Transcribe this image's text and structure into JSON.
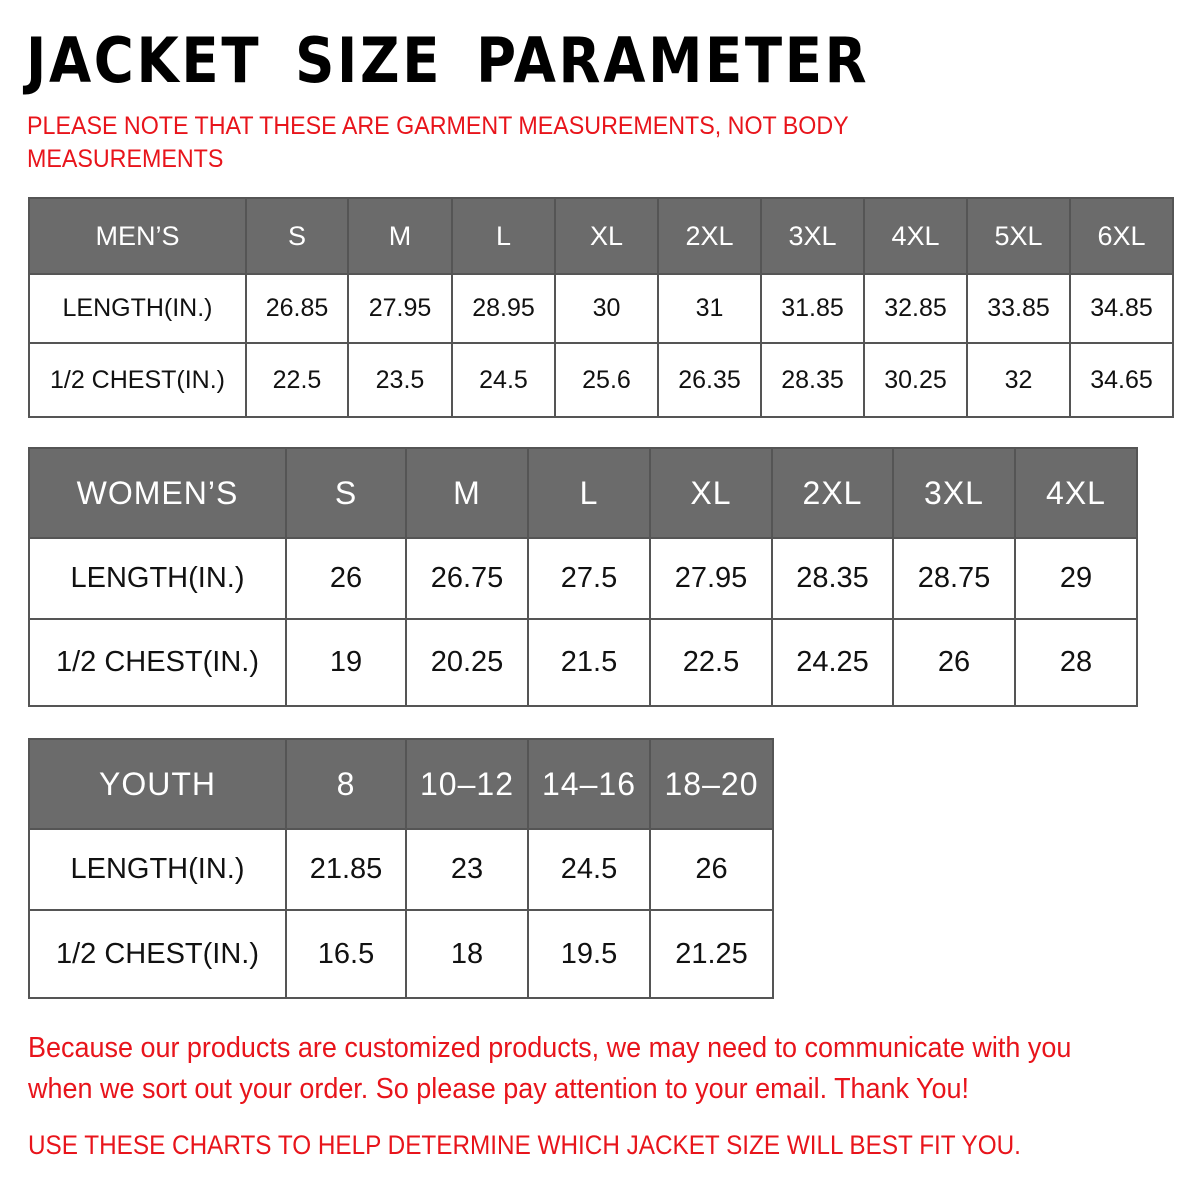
{
  "title": "JACKET SIZE PARAMETER",
  "subtitle": "PLEASE NOTE THAT THESE ARE GARMENT MEASUREMENTS, NOT BODY MEASUREMENTS",
  "colors": {
    "accent_red": "#e8141b",
    "header_gray": "#6b6b6b"
  },
  "tables": {
    "men": {
      "header": [
        "MEN’S",
        "S",
        "M",
        "L",
        "XL",
        "2XL",
        "3XL",
        "4XL",
        "5XL",
        "6XL"
      ],
      "rows": [
        [
          "LENGTH(IN.)",
          "26.85",
          "27.95",
          "28.95",
          "30",
          "31",
          "31.85",
          "32.85",
          "33.85",
          "34.85"
        ],
        [
          "1/2 CHEST(IN.)",
          "22.5",
          "23.5",
          "24.5",
          "25.6",
          "26.35",
          "28.35",
          "30.25",
          "32",
          "34.65"
        ]
      ]
    },
    "women": {
      "header": [
        "WOMEN’S",
        "S",
        "M",
        "L",
        "XL",
        "2XL",
        "3XL",
        "4XL"
      ],
      "rows": [
        [
          "LENGTH(IN.)",
          "26",
          "26.75",
          "27.5",
          "27.95",
          "28.35",
          "28.75",
          "29"
        ],
        [
          "1/2 CHEST(IN.)",
          "19",
          "20.25",
          "21.5",
          "22.5",
          "24.25",
          "26",
          "28"
        ]
      ]
    },
    "youth": {
      "header": [
        "YOUTH",
        "8",
        "10–12",
        "14–16",
        "18–20"
      ],
      "rows": [
        [
          "LENGTH(IN.)",
          "21.85",
          "23",
          "24.5",
          "26"
        ],
        [
          "1/2 CHEST(IN.)",
          "16.5",
          "18",
          "19.5",
          "21.25"
        ]
      ]
    }
  },
  "note": "Because our products are customized products, we may need to communicate with you when we sort out your order. So please pay attention to your email. Thank You!",
  "footer": "USE THESE CHARTS TO HELP DETERMINE WHICH JACKET SIZE WILL BEST FIT YOU."
}
